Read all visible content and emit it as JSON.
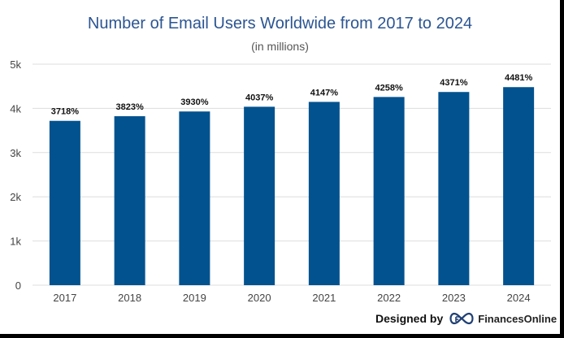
{
  "title": "Number of Email Users Worldwide from 2017 to 2024",
  "subtitle": "(in millions)",
  "credit": {
    "label": "Designed by",
    "logo_icon": "financesonline-logo-icon",
    "brand": "FinancesOnline"
  },
  "colors": {
    "bar": "#02528f",
    "title": "#2b5592",
    "grid": "#dddddd",
    "axis_text": "#444444",
    "data_label": "#111111"
  },
  "chart_data": {
    "type": "bar",
    "title": "Number of Email Users Worldwide from 2017 to 2024",
    "subtitle": "(in millions)",
    "categories": [
      "2017",
      "2018",
      "2019",
      "2020",
      "2021",
      "2022",
      "2023",
      "2024"
    ],
    "values": [
      3718,
      3823,
      3930,
      4037,
      4147,
      4258,
      4371,
      4481
    ],
    "data_labels": [
      "3718%",
      "3823%",
      "3930%",
      "4037%",
      "4147%",
      "4258%",
      "4371%",
      "4481%"
    ],
    "ylim": [
      0,
      5000
    ],
    "yticks": [
      0,
      1000,
      2000,
      3000,
      4000,
      5000
    ],
    "ytick_labels": [
      "0",
      "1k",
      "2k",
      "3k",
      "4k",
      "5k"
    ],
    "grid": true,
    "legend": "none",
    "xlabel": "",
    "ylabel": ""
  }
}
